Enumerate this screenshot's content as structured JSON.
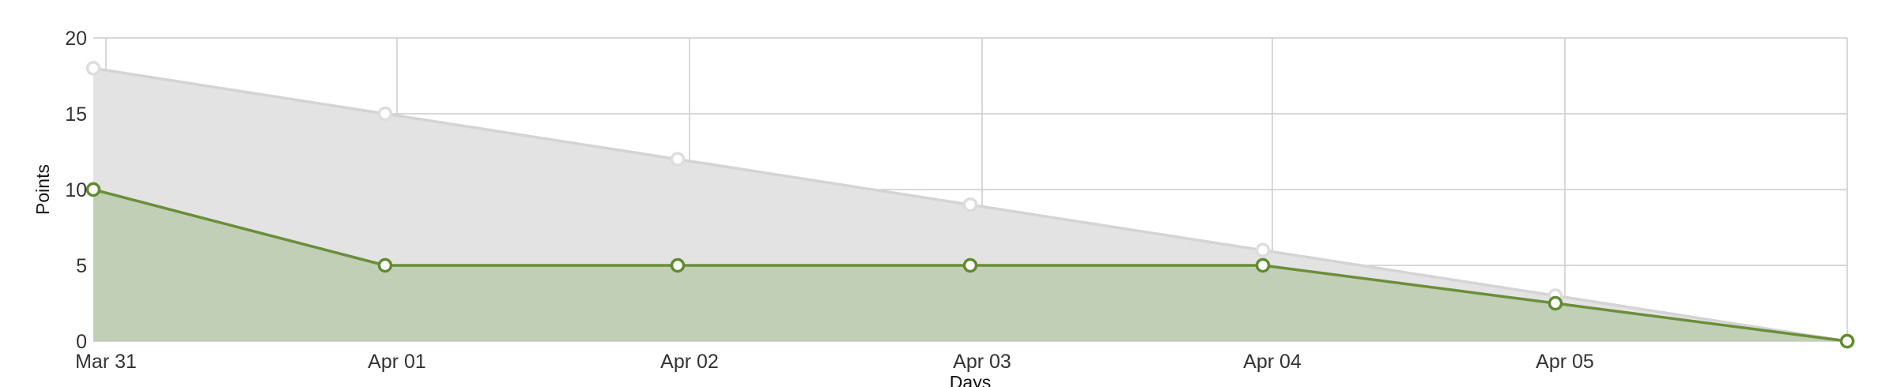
{
  "chart_data": {
    "type": "area",
    "title": "",
    "xlabel": "Days",
    "ylabel": "Points",
    "x": [
      0,
      1,
      2,
      3,
      4,
      5,
      6
    ],
    "x_tick_labels": [
      "Mar 31",
      "Apr 01",
      "Apr 02",
      "Apr 03",
      "Apr 04",
      "Apr 05"
    ],
    "ylim": [
      0,
      20
    ],
    "y_ticks": [
      0,
      5,
      10,
      15,
      20
    ],
    "grid": true,
    "series": [
      {
        "key": "ideal",
        "values": [
          18,
          15,
          12,
          9,
          6,
          3,
          0
        ],
        "line_color": "#d4d4d4",
        "fill_color": "#e2e2e2",
        "marker_fill": "#ffffff",
        "marker_stroke": "#dddddd"
      },
      {
        "key": "actual",
        "values": [
          10,
          5,
          5,
          5,
          5,
          2.5,
          0
        ],
        "line_color": "#6b8e3a",
        "fill_color": "#bfcdb4",
        "marker_fill": "#ffffff",
        "marker_stroke": "#5f8a2e"
      }
    ],
    "colors": {
      "grid": "#cccccc",
      "axis_text": "#333333"
    }
  }
}
